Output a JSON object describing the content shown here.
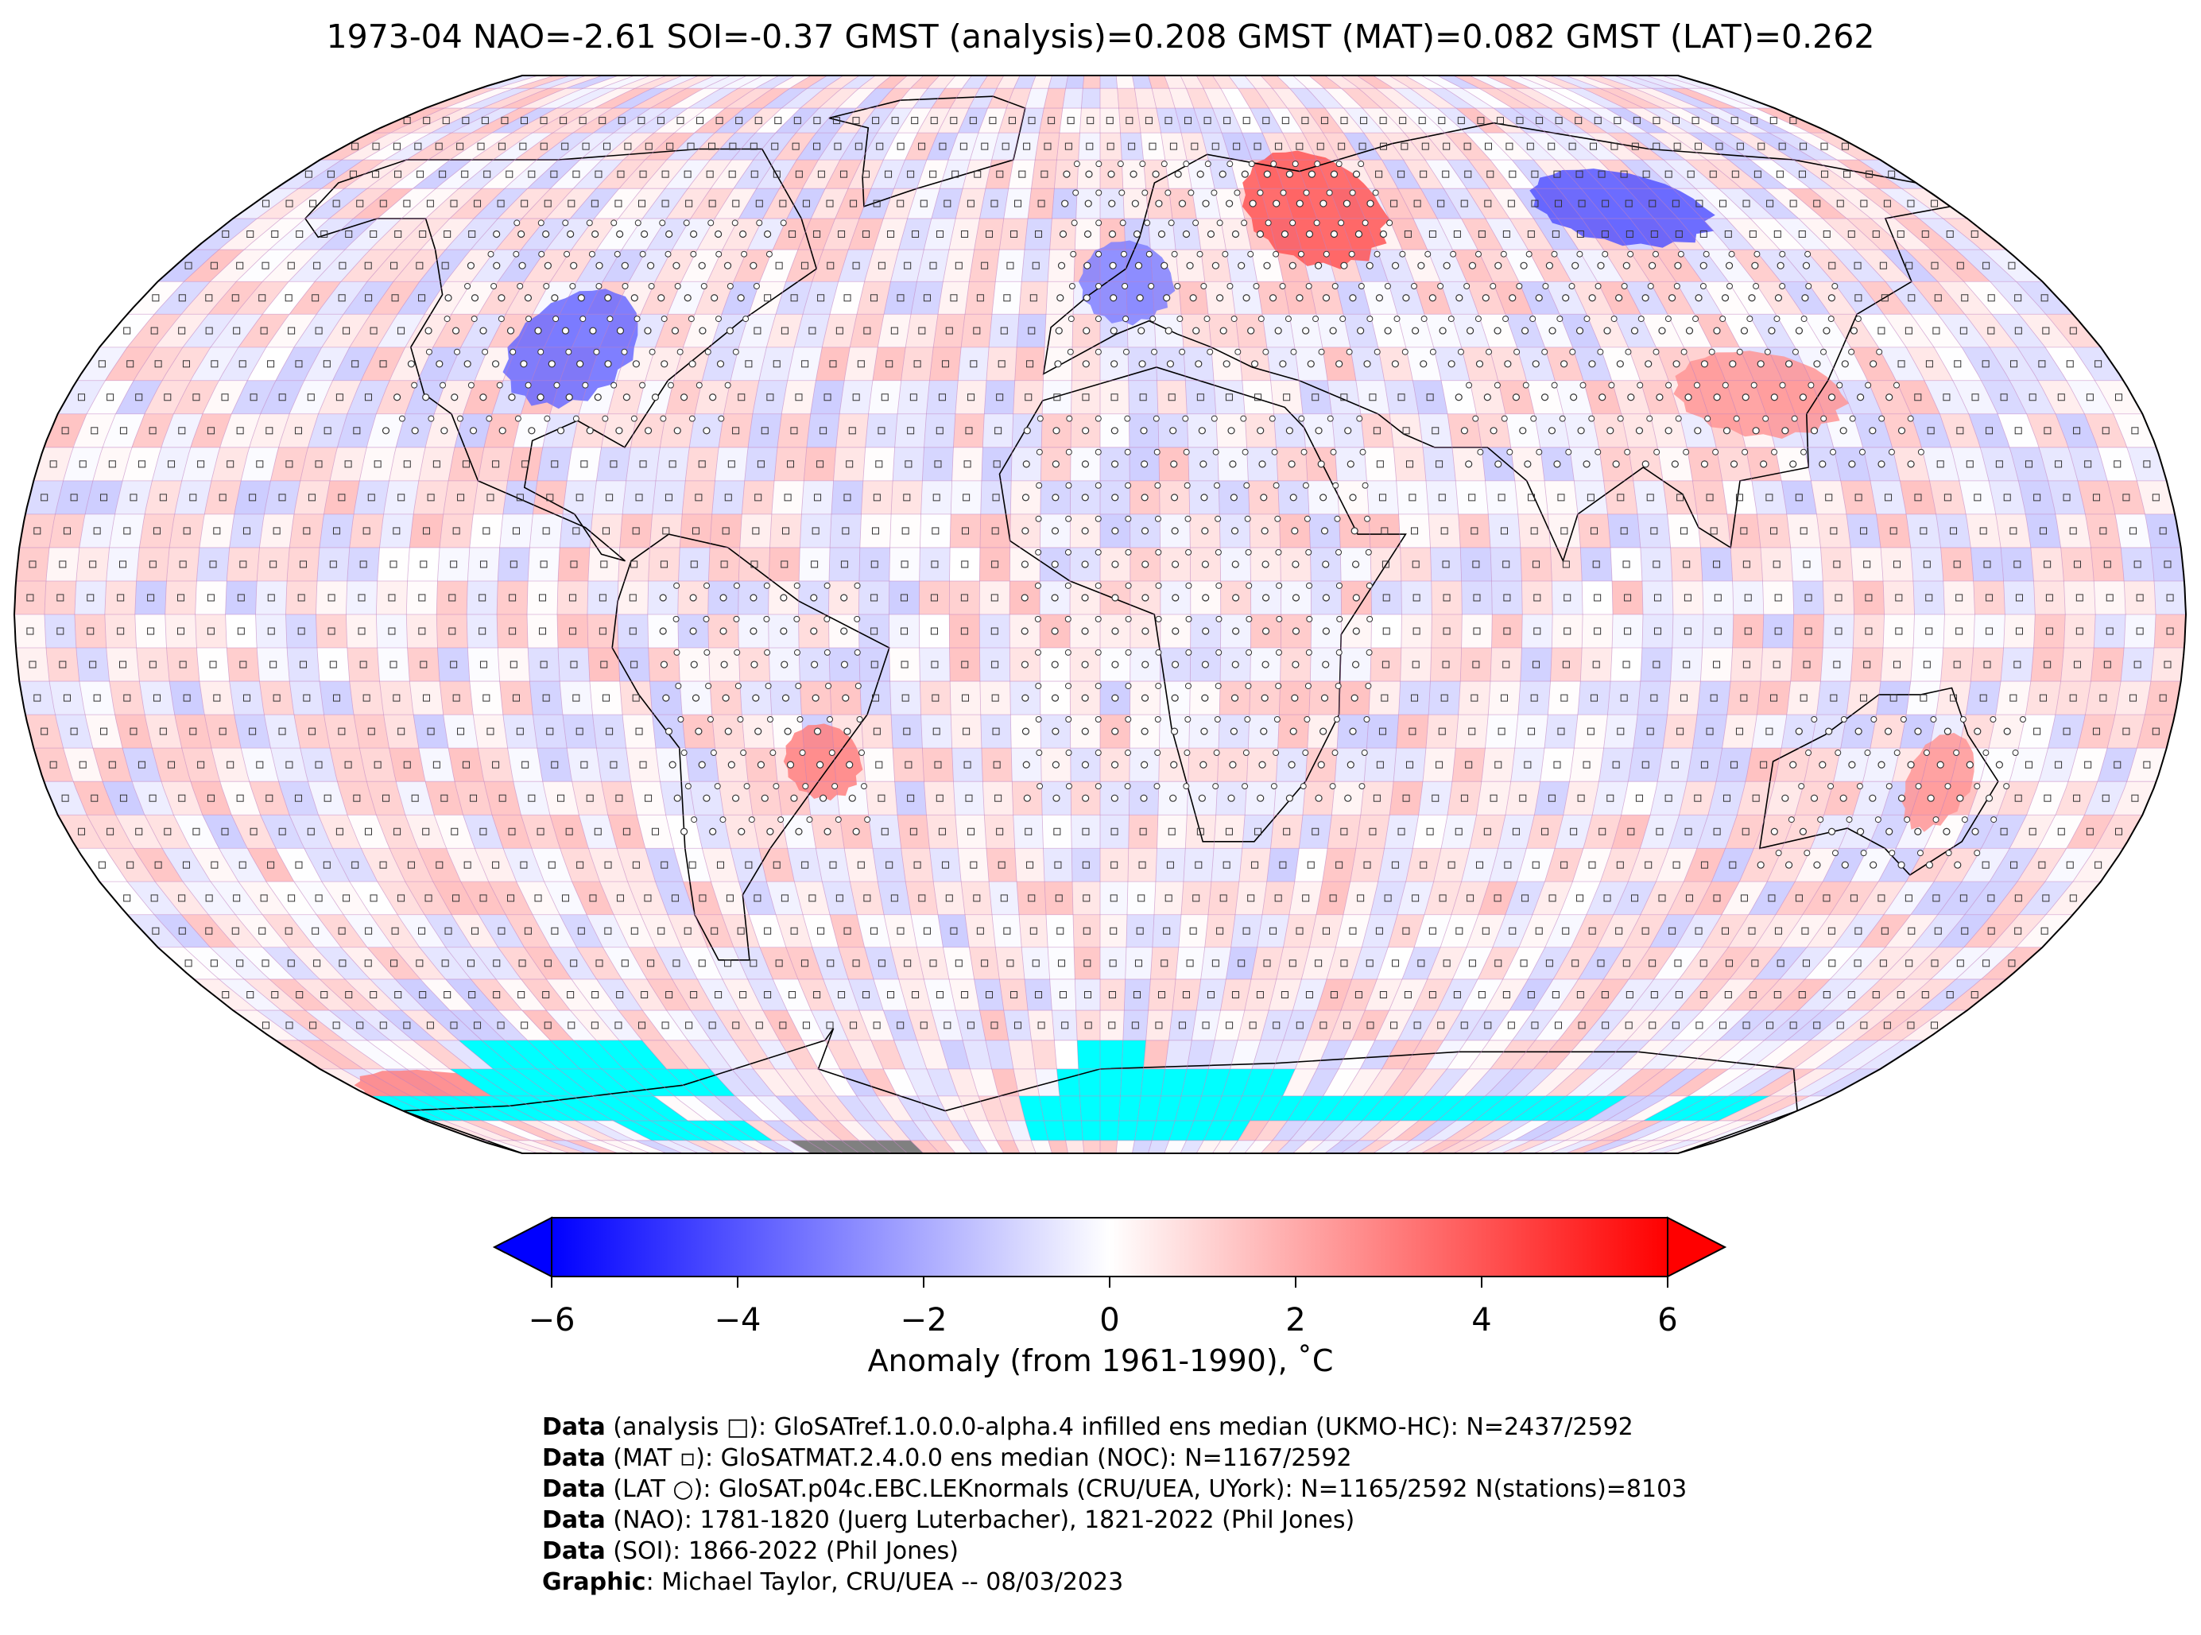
{
  "title": "1973-04 NAO=-2.61 SOI=-0.37 GMST (analysis)=0.208 GMST (MAT)=0.082 GMST (LAT)=0.262",
  "colors": {
    "cold": "#0000ff",
    "neutral": "#ffffff",
    "warm": "#ff0000",
    "no_ice_data": "#00ffff",
    "land_mask": "#808080",
    "gridline": "#c080c0",
    "coastline": "#000000"
  },
  "map": {
    "projection": "Robinson",
    "grid_spacing_deg": 5,
    "station_marker_shape": "circle",
    "mat_marker_shape": "small-square",
    "analysis_marker_shape": "square",
    "anomaly_regions": [
      {
        "region": "north-america-interior",
        "anomaly": -3.5
      },
      {
        "region": "western-europe",
        "anomaly": -3.0
      },
      {
        "region": "west-siberia-russia",
        "anomaly": 4.0
      },
      {
        "region": "east-siberia",
        "anomaly": -4.0
      },
      {
        "region": "east-asia",
        "anomaly": 2.5
      },
      {
        "region": "south-america-east",
        "anomaly": 3.0
      },
      {
        "region": "australia-east",
        "anomaly": 2.5
      },
      {
        "region": "antarctica-pacific-sector",
        "anomaly": 3.0
      }
    ]
  },
  "colorbar": {
    "min": -6,
    "max": 6,
    "ticks": [
      "−6",
      "−4",
      "−2",
      "0",
      "2",
      "4",
      "6"
    ],
    "label": "Anomaly (from 1961-1990), ˚C",
    "extend": "both"
  },
  "footer": [
    {
      "bold": "Data",
      "text": " (analysis □): GloSATref.1.0.0.0-alpha.4 infilled ens median (UKMO-HC): N=2437/2592"
    },
    {
      "bold": "Data",
      "text": " (MAT ▫): GloSATMAT.2.4.0.0 ens median (NOC): N=1167/2592"
    },
    {
      "bold": "Data",
      "text": " (LAT ○): GloSAT.p04c.EBC.LEKnormals (CRU/UEA, UYork): N=1165/2592 N(stations)=8103"
    },
    {
      "bold": "Data",
      "text": " (NAO): 1781-1820 (Juerg Luterbacher), 1821-2022 (Phil Jones)"
    },
    {
      "bold": "Data",
      "text": " (SOI): 1866-2022 (Phil Jones)"
    },
    {
      "bold": "Graphic",
      "text": ": Michael Taylor, CRU/UEA -- 08/03/2023"
    }
  ]
}
